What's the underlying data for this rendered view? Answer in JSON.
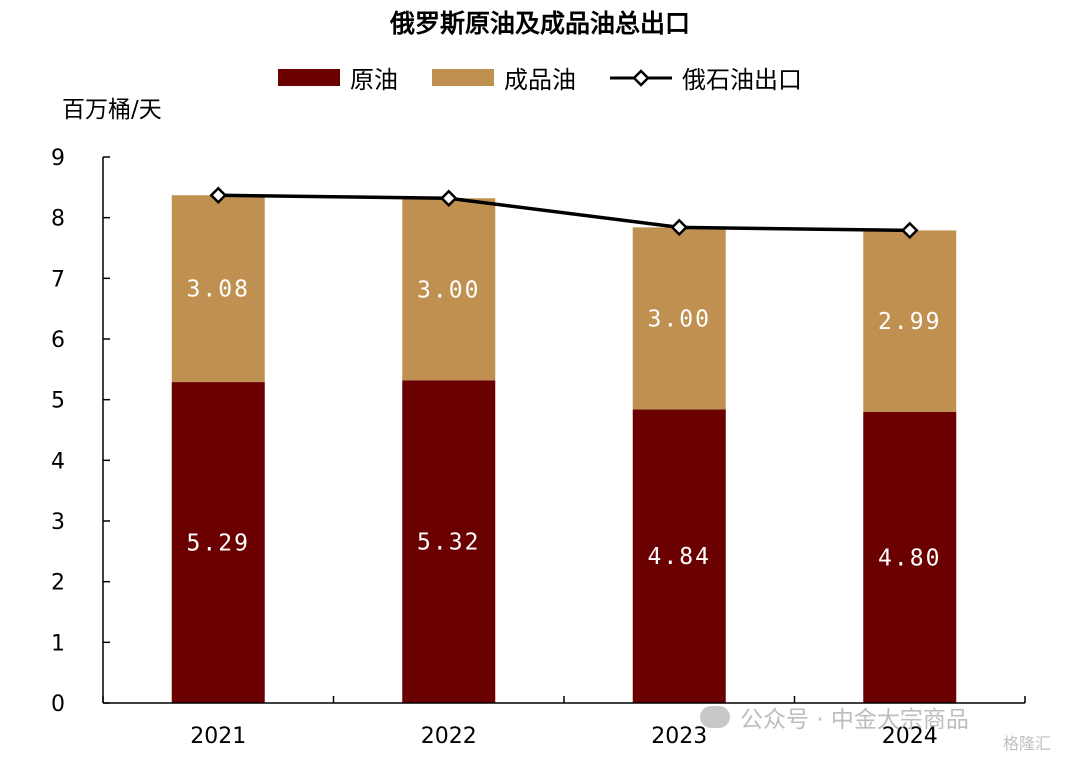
{
  "chart_data": {
    "type": "bar",
    "title": "俄罗斯原油及成品油总出口",
    "ylabel": "百万桶/天",
    "categories": [
      "2021",
      "2022",
      "2023",
      "2024"
    ],
    "ylim": [
      0,
      9
    ],
    "yticks": [
      "0",
      "1",
      "2",
      "3",
      "4",
      "5",
      "6",
      "7",
      "8",
      "9"
    ],
    "stacked": true,
    "series": [
      {
        "name": "原油",
        "type": "bar",
        "color": "#6b0000",
        "values": [
          5.29,
          5.32,
          4.84,
          4.8
        ],
        "labels": [
          "5.29",
          "5.32",
          "4.84",
          "4.80"
        ]
      },
      {
        "name": "成品油",
        "type": "bar",
        "color": "#c09050",
        "values": [
          3.08,
          3.0,
          3.0,
          2.99
        ],
        "labels": [
          "3.08",
          "3.00",
          "3.00",
          "2.99"
        ]
      },
      {
        "name": "俄石油出口",
        "type": "line",
        "color": "#000000",
        "marker": "diamond",
        "values": [
          8.37,
          8.32,
          7.84,
          7.79
        ]
      }
    ],
    "legend_position": "top-center",
    "grid": false
  },
  "watermark": {
    "text": "公众号 · 中金大宗商品",
    "corner": "格隆汇"
  }
}
